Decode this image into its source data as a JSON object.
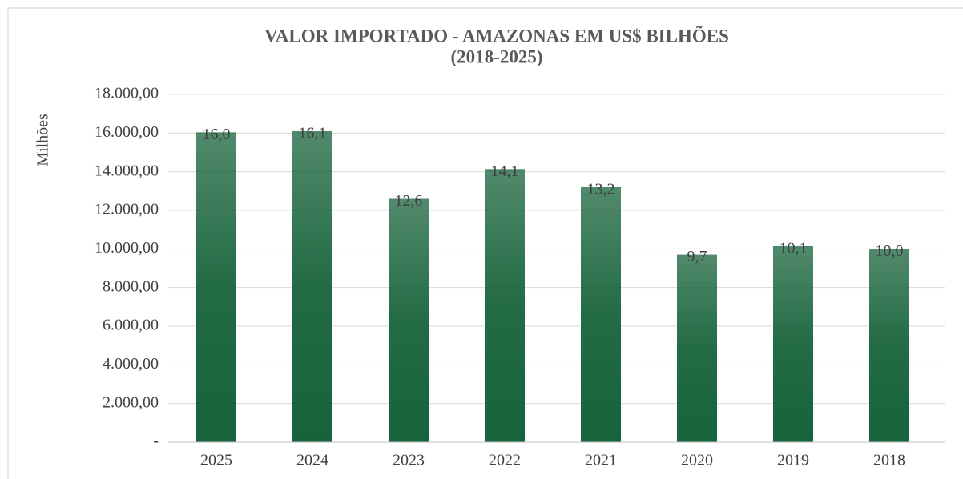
{
  "chart_data": {
    "type": "bar",
    "title": [
      "VALOR IMPORTADO - AMAZONAS EM US$ BILHÕES",
      "(2018-2025)"
    ],
    "y_label": "Milhões",
    "categories": [
      "2025",
      "2024",
      "2023",
      "2022",
      "2021",
      "2020",
      "2019",
      "2018"
    ],
    "values": [
      16040,
      16100,
      12600,
      14140,
      13200,
      9700,
      10140,
      10000
    ],
    "value_labels": [
      "16,0",
      "16,1",
      "12,6",
      "14,1",
      "13,2",
      "9,7",
      "10,1",
      "10,0"
    ],
    "color": "#17633b",
    "ylim": [
      0,
      18000
    ],
    "yticks": [
      {
        "value": 0,
        "label": "-"
      },
      {
        "value": 2000,
        "label": "2.000,00"
      },
      {
        "value": 4000,
        "label": "4.000,00"
      },
      {
        "value": 6000,
        "label": "6.000,00"
      },
      {
        "value": 8000,
        "label": "8.000,00"
      },
      {
        "value": 10000,
        "label": "10.000,00"
      },
      {
        "value": 12000,
        "label": "12.000,00"
      },
      {
        "value": 14000,
        "label": "14.000,00"
      },
      {
        "value": 16000,
        "label": "16.000,00"
      },
      {
        "value": 18000,
        "label": "18.000,00"
      }
    ],
    "grid": true
  }
}
